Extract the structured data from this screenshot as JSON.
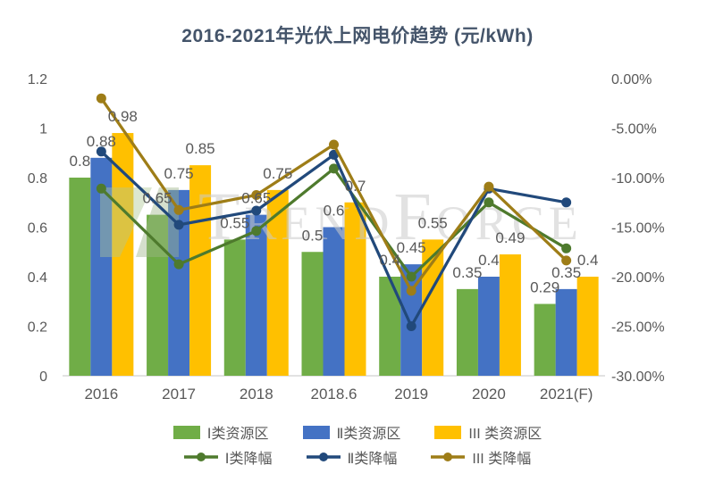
{
  "title": "2016-2021年光伏上网电价趋势 (元/kWh)",
  "watermark": {
    "brand": "TrendForce"
  },
  "colors": {
    "title": "#44546A",
    "axis_text": "#595959",
    "data_label": "#595959",
    "axis_line": "#D9D9D9",
    "watermark_text": "#CBCBCB",
    "watermark_logo_left": "#AFC796",
    "watermark_logo_right": "#9FB789"
  },
  "chart_data": {
    "type": "bar+line combo",
    "title": "2016-2021年光伏上网电价趋势 (元/kWh)",
    "categories": [
      "2016",
      "2017",
      "2018",
      "2018.6",
      "2019",
      "2020",
      "2021(F)"
    ],
    "bar_series": [
      {
        "name": "Ⅰ类资源区",
        "color": "#70AD47",
        "values": [
          0.8,
          0.65,
          0.55,
          0.5,
          0.4,
          0.35,
          0.29
        ]
      },
      {
        "name": "Ⅱ类资源区",
        "color": "#4472C4",
        "values": [
          0.88,
          0.75,
          0.65,
          0.6,
          0.45,
          0.4,
          0.35
        ]
      },
      {
        "name": "III 类资源区",
        "color": "#FFC000",
        "values": [
          0.98,
          0.85,
          0.75,
          0.7,
          0.55,
          0.49,
          0.4
        ]
      }
    ],
    "line_series": [
      {
        "name": "Ⅰ类降幅",
        "color": "#4E7A2D",
        "values_pct": [
          -11.11,
          -18.75,
          -15.38,
          -9.09,
          -20.0,
          -12.5,
          -17.14
        ]
      },
      {
        "name": "Ⅱ类降幅",
        "color": "#21497B",
        "values_pct": [
          -7.37,
          -14.77,
          -13.33,
          -7.69,
          -25.0,
          -11.11,
          -12.5
        ]
      },
      {
        "name": "III 类降幅",
        "color": "#9E7D17",
        "values_pct": [
          -2.0,
          -13.27,
          -11.76,
          -6.67,
          -21.43,
          -10.91,
          -18.37
        ]
      }
    ],
    "left_axis": {
      "ticks": [
        "1.2",
        "1",
        "0.8",
        "0.6",
        "0.4",
        "0.2",
        "0"
      ],
      "range": [
        0,
        1.2
      ]
    },
    "right_axis": {
      "ticks": [
        "0.00%",
        "-5.00%",
        "-10.00%",
        "-15.00%",
        "-20.00%",
        "-25.00%",
        "-30.00%"
      ],
      "range": [
        0,
        -30
      ]
    },
    "bar_data_labels": true,
    "grid": false,
    "legend_position": "bottom"
  }
}
